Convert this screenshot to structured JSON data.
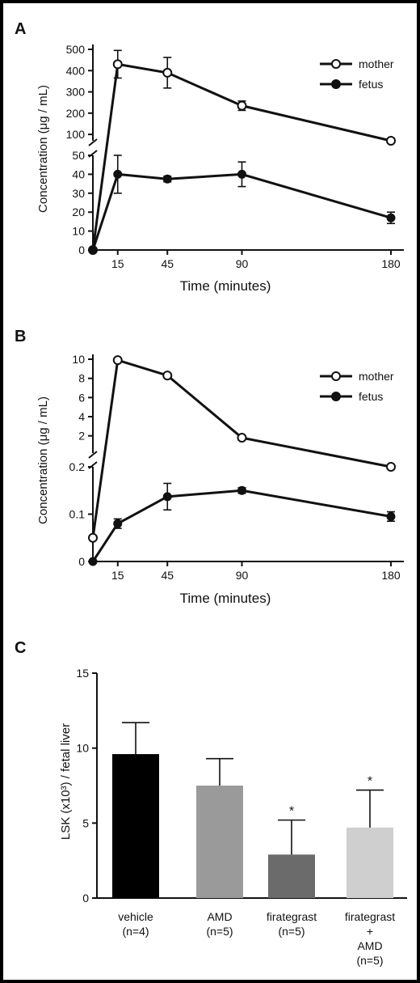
{
  "chart_data": [
    {
      "type": "line",
      "panel_label": "A",
      "xlabel": "Time (minutes)",
      "ylabel": "Concentration (μg / mL)",
      "x": [
        0,
        15,
        45,
        90,
        180
      ],
      "xticks": [
        "15",
        "45",
        "90",
        "180"
      ],
      "y_axis_break": true,
      "ylim_lower": [
        0,
        50
      ],
      "ylim_upper": [
        50,
        500
      ],
      "yticks_lower": [
        "0",
        "10",
        "20",
        "30",
        "40",
        "50"
      ],
      "yticks_upper": [
        "100",
        "200",
        "300",
        "400",
        "500"
      ],
      "legend_position": "top-right",
      "series": [
        {
          "name": "mother",
          "marker": "open-circle",
          "values": [
            0,
            430,
            390,
            235,
            70
          ],
          "errors": [
            0,
            65,
            72,
            22,
            0
          ]
        },
        {
          "name": "fetus",
          "marker": "filled-circle",
          "values": [
            0,
            40,
            37.5,
            40,
            17
          ],
          "errors": [
            0,
            10,
            1.5,
            6.5,
            3
          ]
        }
      ]
    },
    {
      "type": "line",
      "panel_label": "B",
      "xlabel": "Time (minutes)",
      "ylabel": "Concentration (μg / mL)",
      "x": [
        0,
        15,
        45,
        90,
        180
      ],
      "xticks": [
        "15",
        "45",
        "90",
        "180"
      ],
      "y_axis_break": true,
      "ylim_lower": [
        0,
        0.2
      ],
      "ylim_upper": [
        0.2,
        10
      ],
      "yticks_lower": [
        "0",
        "0.1",
        "0.2"
      ],
      "yticks_upper": [
        "2",
        "4",
        "6",
        "8",
        "10"
      ],
      "legend_position": "top-right",
      "series": [
        {
          "name": "mother",
          "marker": "open-circle",
          "values": [
            0.05,
            9.9,
            8.3,
            1.8,
            0.2
          ],
          "errors": [
            0,
            0,
            0,
            0,
            0
          ]
        },
        {
          "name": "fetus",
          "marker": "filled-circle",
          "values": [
            0,
            0.08,
            0.137,
            0.15,
            0.095
          ],
          "errors": [
            0,
            0.01,
            0.028,
            0.006,
            0.01
          ]
        }
      ]
    },
    {
      "type": "bar",
      "panel_label": "C",
      "ylabel": "LSK (x10³) / fetal liver",
      "ylim": [
        0,
        15
      ],
      "yticks": [
        "0",
        "5",
        "10",
        "15"
      ],
      "categories": [
        [
          "vehicle",
          "(n=4)"
        ],
        [
          "AMD",
          "(n=5)"
        ],
        [
          "firategrast",
          "(n=5)"
        ],
        [
          "firategrast",
          "+",
          "AMD",
          "(n=5)"
        ]
      ],
      "values": [
        9.6,
        7.5,
        2.9,
        4.7
      ],
      "errors": [
        2.1,
        1.8,
        2.3,
        2.5
      ],
      "significance": [
        "",
        "",
        "*",
        "*"
      ],
      "colors": [
        "#000000",
        "#9a9a9a",
        "#6b6b6b",
        "#cfcfcf"
      ]
    }
  ]
}
